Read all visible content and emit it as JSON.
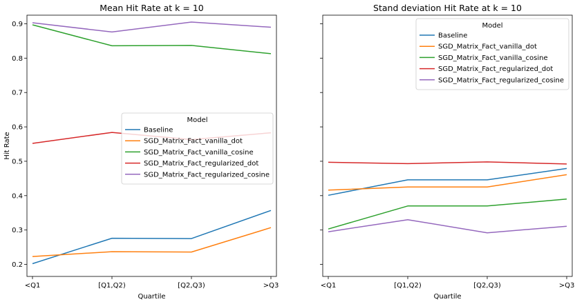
{
  "chart_data": [
    {
      "type": "line",
      "title": "Mean Hit Rate at k = 10",
      "xlabel": "Quartile",
      "ylabel": "Hit Rate",
      "categories": [
        "<Q1",
        "[Q1,Q2)",
        "[Q2,Q3)",
        ">Q3"
      ],
      "ylim": [
        0.165,
        0.925
      ],
      "yticks": [
        0.2,
        0.3,
        0.4,
        0.5,
        0.6,
        0.7,
        0.8,
        0.9
      ],
      "ytick_labels": [
        "0.2",
        "0.3",
        "0.4",
        "0.5",
        "0.6",
        "0.7",
        "0.8",
        "0.9"
      ],
      "grid": false,
      "legend": {
        "title": "Model",
        "placement": "center-right"
      },
      "series": [
        {
          "name": "Baseline",
          "color": "#1f77b4",
          "values": [
            0.202,
            0.276,
            0.275,
            0.357
          ]
        },
        {
          "name": "SGD_Matrix_Fact_vanilla_dot",
          "color": "#ff7f0e",
          "values": [
            0.223,
            0.237,
            0.236,
            0.307
          ]
        },
        {
          "name": "SGD_Matrix_Fact_vanilla_cosine",
          "color": "#2ca02c",
          "values": [
            0.897,
            0.836,
            0.837,
            0.813
          ]
        },
        {
          "name": "SGD_Matrix_Fact_regularized_dot",
          "color": "#d62728",
          "values": [
            0.552,
            0.584,
            0.563,
            0.583
          ]
        },
        {
          "name": "SGD_Matrix_Fact_regularized_cosine",
          "color": "#9467bd",
          "values": [
            0.903,
            0.876,
            0.905,
            0.89
          ]
        }
      ]
    },
    {
      "type": "line",
      "title": "Stand deviation Hit Rate at k = 10",
      "xlabel": "Quartile",
      "ylabel": "",
      "categories": [
        "<Q1",
        "[Q1,Q2)",
        "[Q2,Q3)",
        ">Q3"
      ],
      "ylim": [
        0.165,
        0.925
      ],
      "shared_y": true,
      "grid": false,
      "legend": {
        "title": "Model",
        "placement": "upper-right"
      },
      "series": [
        {
          "name": "Baseline",
          "color": "#1f77b4",
          "values": [
            0.401,
            0.446,
            0.446,
            0.479
          ]
        },
        {
          "name": "SGD_Matrix_Fact_vanilla_dot",
          "color": "#ff7f0e",
          "values": [
            0.416,
            0.425,
            0.425,
            0.461
          ]
        },
        {
          "name": "SGD_Matrix_Fact_vanilla_cosine",
          "color": "#2ca02c",
          "values": [
            0.303,
            0.37,
            0.37,
            0.39
          ]
        },
        {
          "name": "SGD_Matrix_Fact_regularized_dot",
          "color": "#d62728",
          "values": [
            0.497,
            0.493,
            0.498,
            0.492
          ]
        },
        {
          "name": "SGD_Matrix_Fact_regularized_cosine",
          "color": "#9467bd",
          "values": [
            0.295,
            0.33,
            0.292,
            0.311
          ]
        }
      ]
    }
  ]
}
